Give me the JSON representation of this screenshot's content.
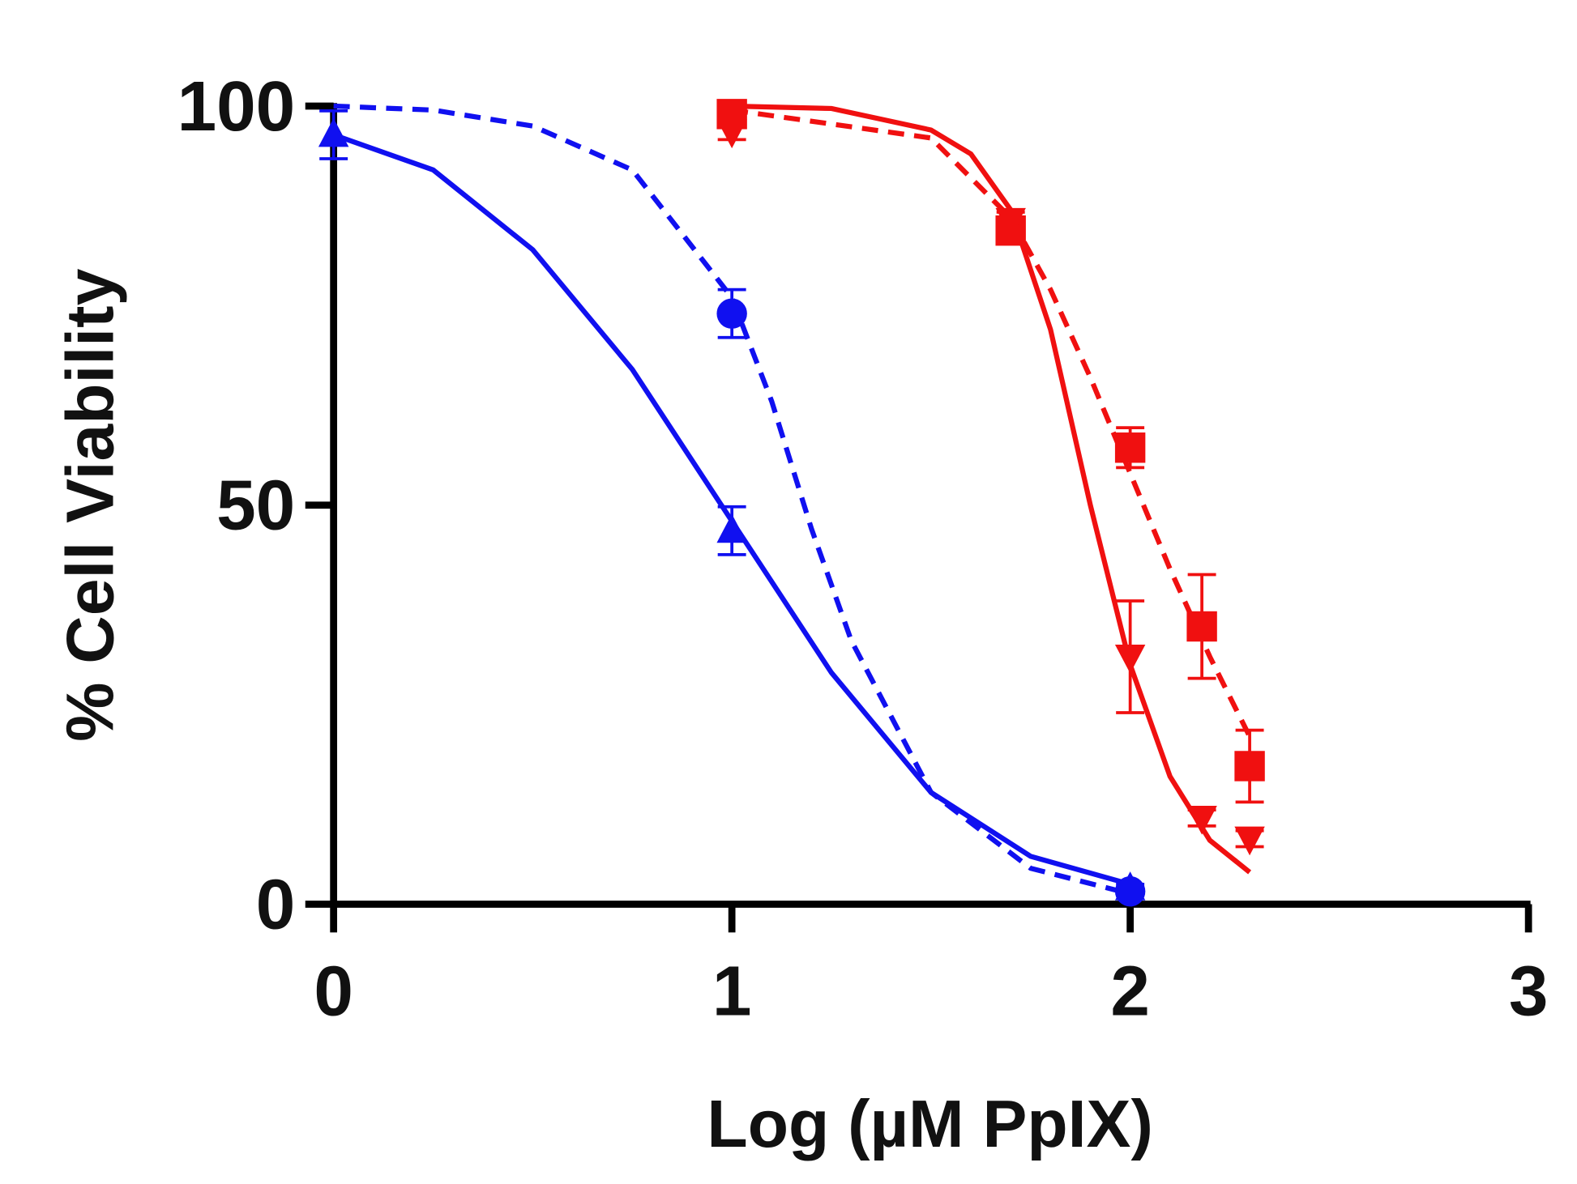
{
  "chart_data": {
    "type": "line",
    "x_label": "Log (µM PpIX)",
    "y_label": "% Cell Viability",
    "xlim": [
      0,
      3
    ],
    "xticks": [
      0,
      1,
      2,
      3
    ],
    "ylim": [
      0,
      100
    ],
    "yticks": [
      0,
      50,
      100
    ],
    "series": [
      {
        "color": "#1010f0",
        "marker": "triangle-up",
        "line": "solid",
        "x": [
          0,
          1,
          2
        ],
        "values": [
          96.4,
          46.8,
          2
        ],
        "errors": [
          3,
          3,
          0.5
        ],
        "fit_x": [
          0,
          0.25,
          0.5,
          0.75,
          1,
          1.25,
          1.5,
          1.75,
          2
        ],
        "fit_y": [
          96.4,
          92,
          82,
          67,
          48,
          29,
          14,
          6,
          2.5
        ]
      },
      {
        "color": "#1010f0",
        "marker": "circle",
        "line": "dashed",
        "x": [
          1,
          2
        ],
        "values": [
          74,
          1.6
        ],
        "errors": [
          3,
          0.5
        ],
        "fit_x": [
          0,
          0.25,
          0.5,
          0.75,
          1,
          1.1,
          1.2,
          1.3,
          1.5,
          1.75,
          2
        ],
        "fit_y": [
          100,
          99.5,
          97.5,
          92,
          76,
          63,
          47,
          33,
          14,
          4.5,
          1.3
        ]
      },
      {
        "color": "#f01010",
        "marker": "square",
        "line": "dashed",
        "x": [
          1,
          1.7,
          2,
          2.18,
          2.3
        ],
        "values": [
          99,
          84.4,
          57.2,
          34.8,
          17.3
        ],
        "errors": [
          1,
          1.5,
          2.5,
          6.5,
          4.5
        ],
        "fit_x": [
          1,
          1.5,
          1.7,
          1.8,
          1.9,
          2,
          2.1,
          2.2,
          2.3
        ],
        "fit_y": [
          99.5,
          96,
          86,
          77,
          66,
          54,
          42,
          31,
          21
        ]
      },
      {
        "color": "#f01010",
        "marker": "triangle-down",
        "line": "solid",
        "x": [
          1,
          1.7,
          2,
          2.18,
          2.3
        ],
        "values": [
          96.8,
          85.7,
          31,
          10.8,
          8.2
        ],
        "errors": [
          1,
          1,
          7,
          1,
          1
        ],
        "fit_x": [
          1,
          1.25,
          1.5,
          1.6,
          1.7,
          1.8,
          1.9,
          2,
          2.1,
          2.2,
          2.3
        ],
        "fit_y": [
          100,
          99.7,
          97,
          94,
          87,
          72,
          50,
          30,
          16,
          8,
          4
        ]
      }
    ]
  }
}
